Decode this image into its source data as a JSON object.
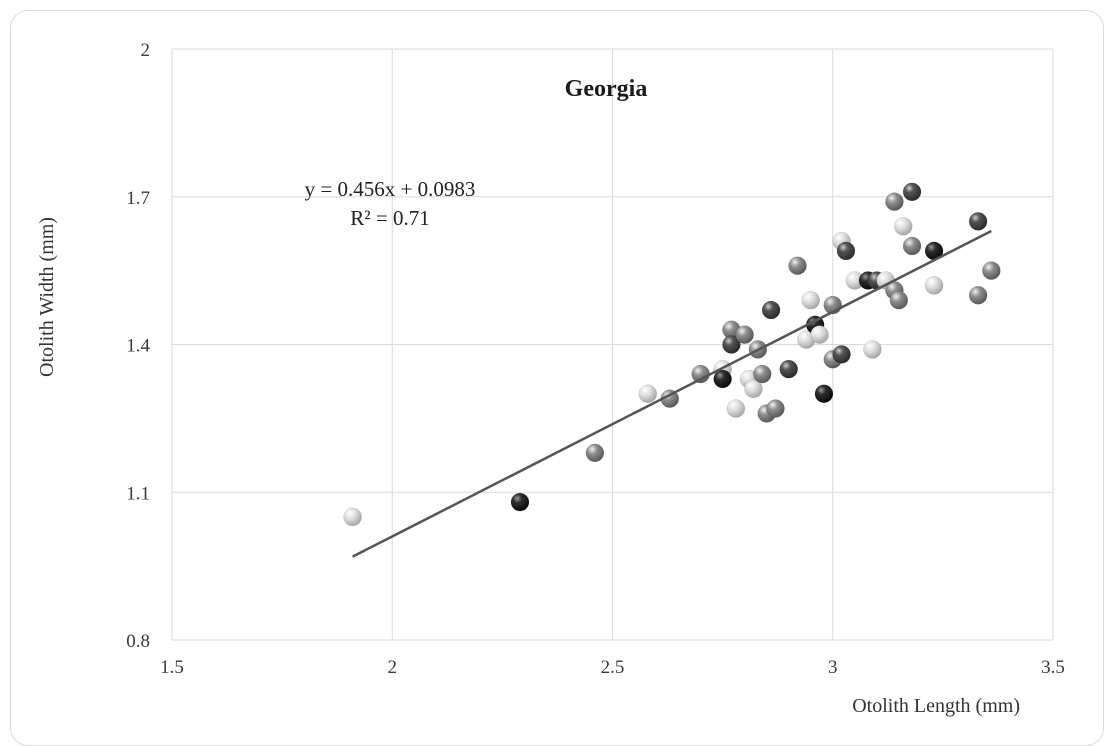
{
  "chart_data": {
    "type": "scatter",
    "title": "Georgia",
    "xlabel": "Otolith Length (mm)",
    "ylabel": "Otolith Width (mm)",
    "xlim": [
      1.5,
      3.5
    ],
    "ylim": [
      0.8,
      2.0
    ],
    "x_ticks": [
      "1.5",
      "2",
      "2.5",
      "3",
      "3.5"
    ],
    "y_ticks": [
      "0.8",
      "1.1",
      "1.4",
      "1.7",
      "2"
    ],
    "grid": true,
    "trendline": {
      "type": "linear",
      "slope": 0.456,
      "intercept": 0.0983,
      "x_range": [
        1.91,
        3.36
      ],
      "equation": "y = 0.456x + 0.0983",
      "r_squared": "R² = 0.71"
    },
    "points": [
      {
        "x": 1.91,
        "y": 1.05,
        "shade": "light"
      },
      {
        "x": 2.29,
        "y": 1.08,
        "shade": "black"
      },
      {
        "x": 2.46,
        "y": 1.18,
        "shade": "mid"
      },
      {
        "x": 2.58,
        "y": 1.3,
        "shade": "light"
      },
      {
        "x": 2.63,
        "y": 1.29,
        "shade": "mid"
      },
      {
        "x": 2.7,
        "y": 1.34,
        "shade": "mid"
      },
      {
        "x": 2.75,
        "y": 1.35,
        "shade": "light"
      },
      {
        "x": 2.75,
        "y": 1.33,
        "shade": "black"
      },
      {
        "x": 2.77,
        "y": 1.43,
        "shade": "mid"
      },
      {
        "x": 2.77,
        "y": 1.4,
        "shade": "dark"
      },
      {
        "x": 2.78,
        "y": 1.27,
        "shade": "light"
      },
      {
        "x": 2.8,
        "y": 1.42,
        "shade": "mid"
      },
      {
        "x": 2.81,
        "y": 1.33,
        "shade": "light"
      },
      {
        "x": 2.82,
        "y": 1.31,
        "shade": "light"
      },
      {
        "x": 2.83,
        "y": 1.39,
        "shade": "mid"
      },
      {
        "x": 2.84,
        "y": 1.34,
        "shade": "mid"
      },
      {
        "x": 2.85,
        "y": 1.26,
        "shade": "mid"
      },
      {
        "x": 2.86,
        "y": 1.47,
        "shade": "dark"
      },
      {
        "x": 2.87,
        "y": 1.27,
        "shade": "mid"
      },
      {
        "x": 2.9,
        "y": 1.35,
        "shade": "dark"
      },
      {
        "x": 2.92,
        "y": 1.56,
        "shade": "mid"
      },
      {
        "x": 2.94,
        "y": 1.41,
        "shade": "light"
      },
      {
        "x": 2.95,
        "y": 1.49,
        "shade": "light"
      },
      {
        "x": 2.96,
        "y": 1.44,
        "shade": "black"
      },
      {
        "x": 2.97,
        "y": 1.42,
        "shade": "light"
      },
      {
        "x": 2.98,
        "y": 1.3,
        "shade": "black"
      },
      {
        "x": 3.0,
        "y": 1.48,
        "shade": "mid"
      },
      {
        "x": 3.0,
        "y": 1.37,
        "shade": "mid"
      },
      {
        "x": 3.02,
        "y": 1.61,
        "shade": "light"
      },
      {
        "x": 3.02,
        "y": 1.38,
        "shade": "dark"
      },
      {
        "x": 3.03,
        "y": 1.59,
        "shade": "dark"
      },
      {
        "x": 3.05,
        "y": 1.53,
        "shade": "light"
      },
      {
        "x": 3.08,
        "y": 1.53,
        "shade": "black"
      },
      {
        "x": 3.09,
        "y": 1.39,
        "shade": "light"
      },
      {
        "x": 3.1,
        "y": 1.53,
        "shade": "dark"
      },
      {
        "x": 3.12,
        "y": 1.53,
        "shade": "light"
      },
      {
        "x": 3.14,
        "y": 1.69,
        "shade": "mid"
      },
      {
        "x": 3.14,
        "y": 1.51,
        "shade": "mid"
      },
      {
        "x": 3.15,
        "y": 1.49,
        "shade": "mid"
      },
      {
        "x": 3.16,
        "y": 1.64,
        "shade": "light"
      },
      {
        "x": 3.18,
        "y": 1.71,
        "shade": "dark"
      },
      {
        "x": 3.18,
        "y": 1.6,
        "shade": "mid"
      },
      {
        "x": 3.23,
        "y": 1.59,
        "shade": "black"
      },
      {
        "x": 3.23,
        "y": 1.52,
        "shade": "light"
      },
      {
        "x": 3.33,
        "y": 1.65,
        "shade": "dark"
      },
      {
        "x": 3.33,
        "y": 1.5,
        "shade": "mid"
      },
      {
        "x": 3.36,
        "y": 1.55,
        "shade": "mid"
      }
    ]
  },
  "colors": {
    "grid": "#d9d9d9",
    "trendline": "#555555",
    "black": "#1c1c1c",
    "dark": "#4a4a4a",
    "mid": "#8a8a8a",
    "light": "#d4d4d4"
  }
}
